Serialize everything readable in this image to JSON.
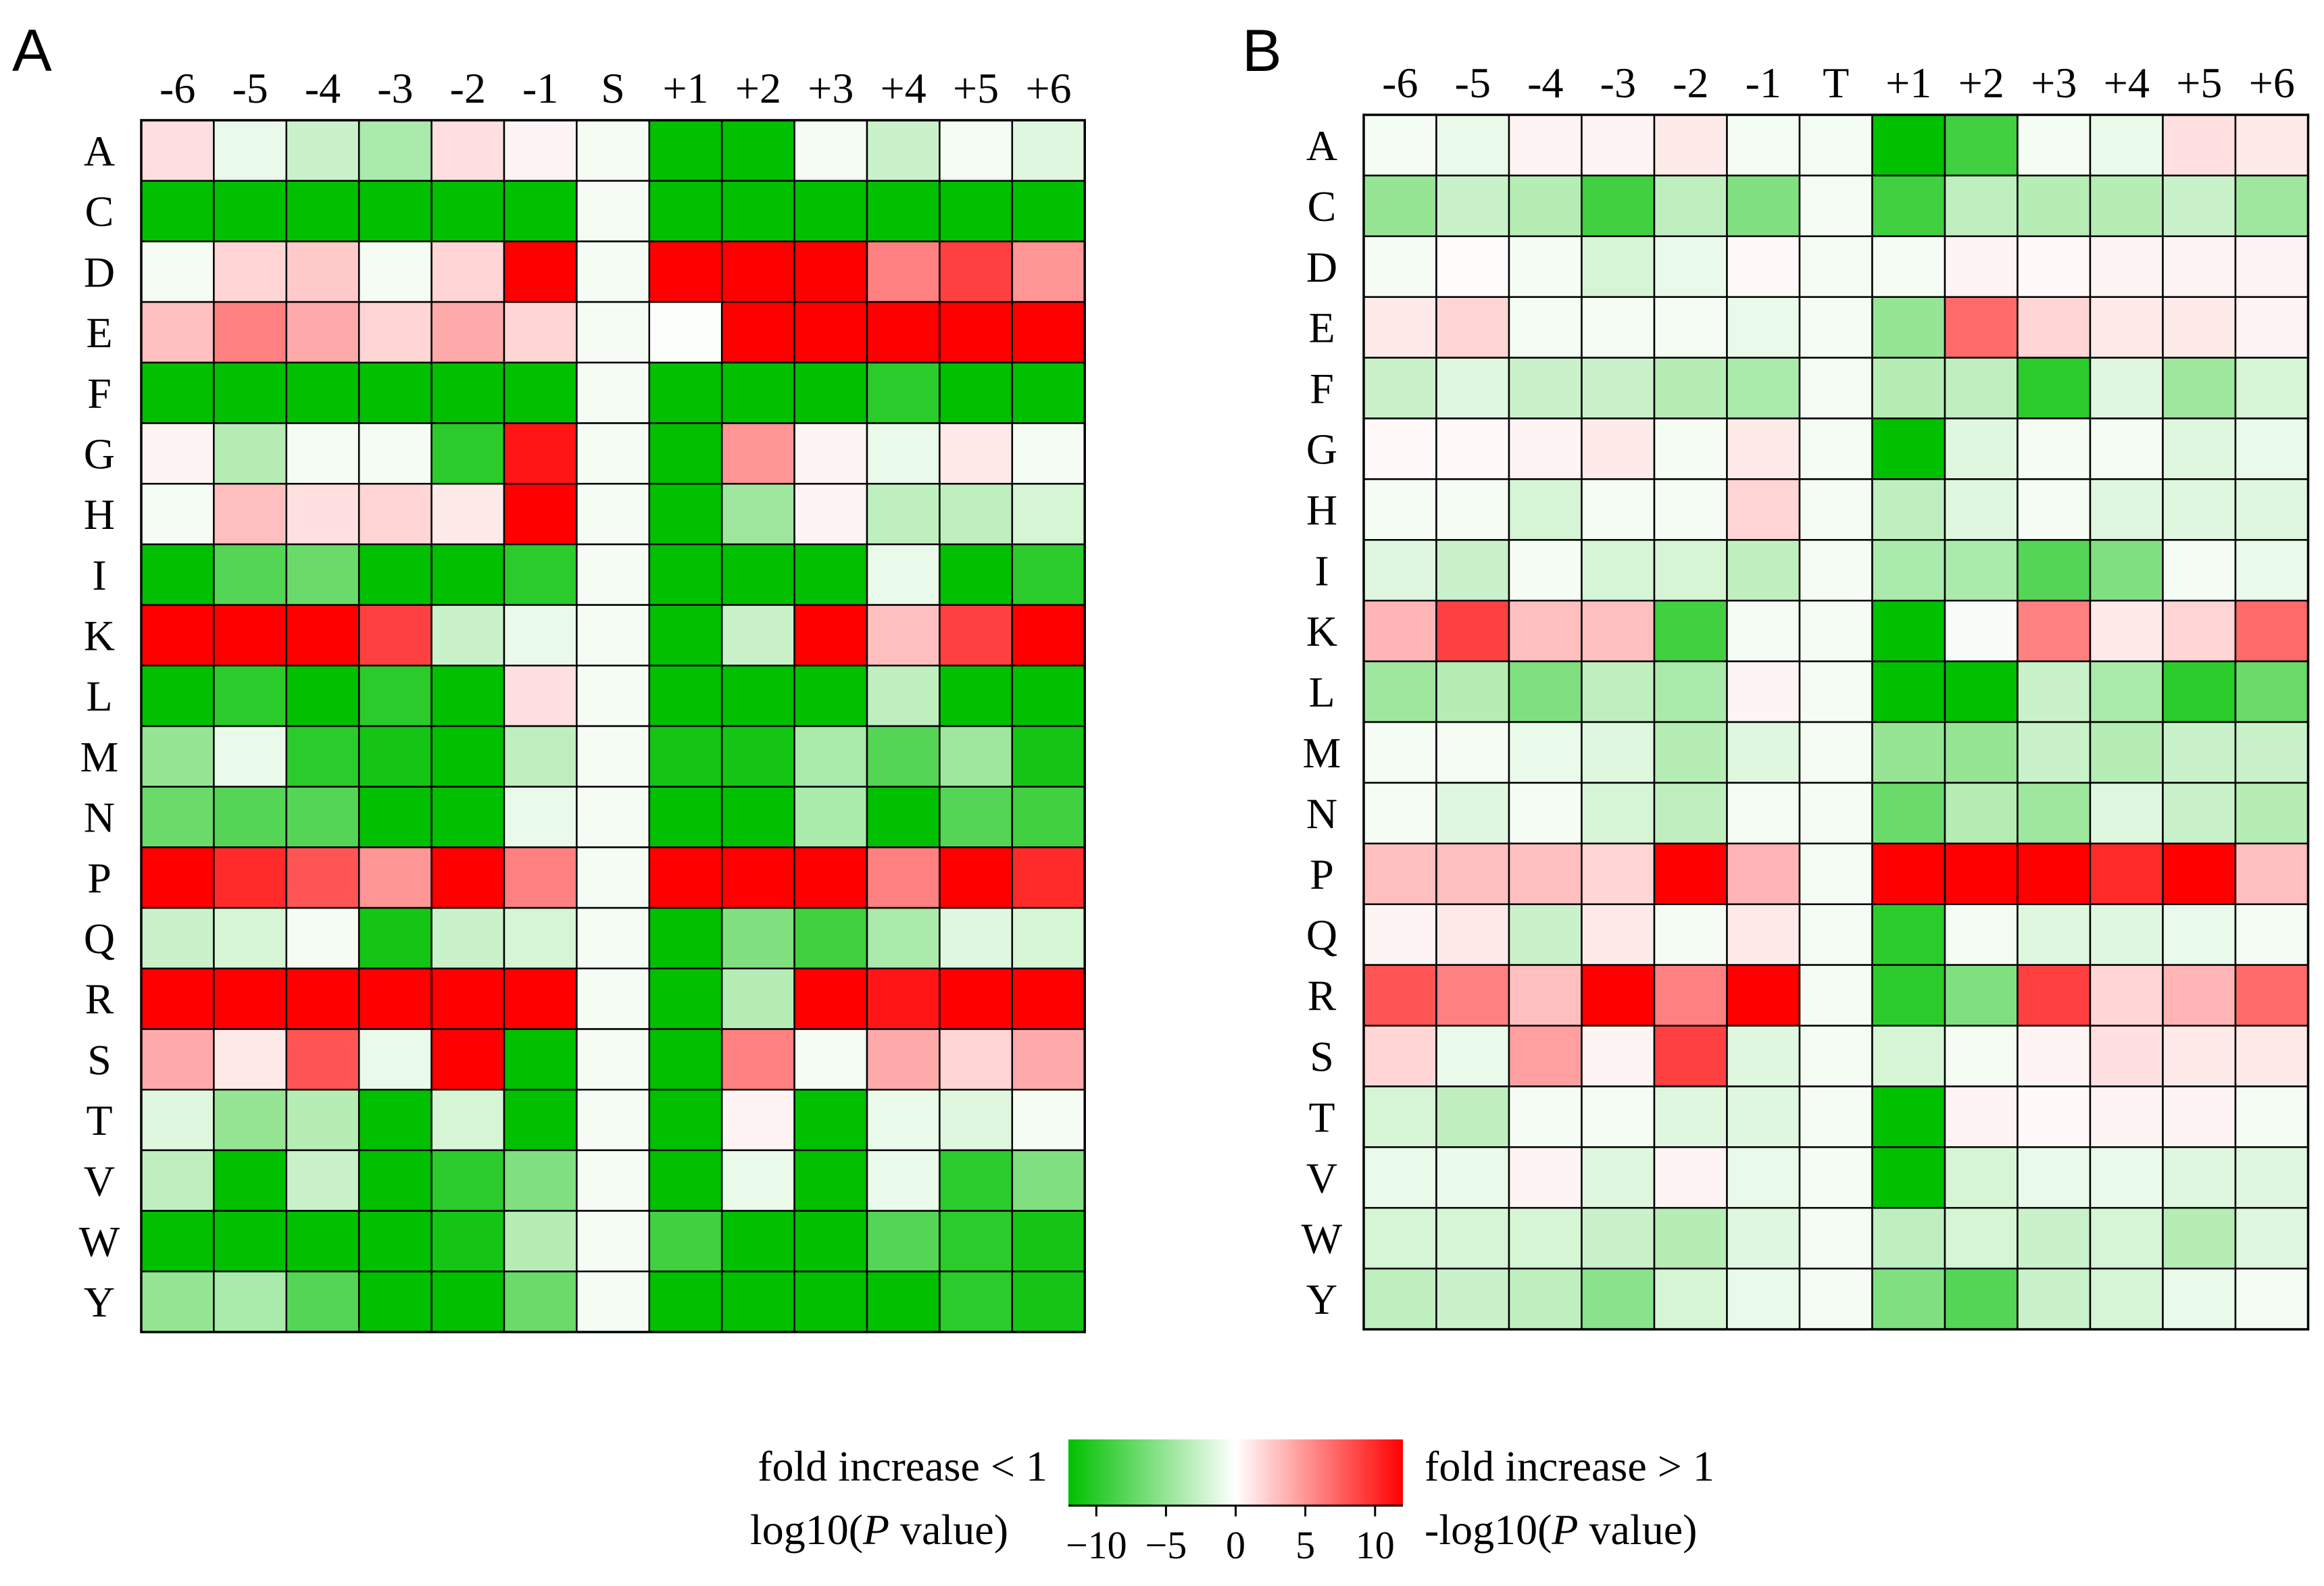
{
  "chart_data": [
    {
      "type": "heatmap",
      "panel_label": "A",
      "columns": [
        "-6",
        "-5",
        "-4",
        "-3",
        "-2",
        "-1",
        "S",
        "+1",
        "+2",
        "+3",
        "+4",
        "+5",
        "+6"
      ],
      "rows": [
        "A",
        "C",
        "D",
        "E",
        "F",
        "G",
        "H",
        "I",
        "K",
        "L",
        "M",
        "N",
        "P",
        "Q",
        "R",
        "S",
        "T",
        "V",
        "W",
        "Y"
      ],
      "values": [
        [
          1.5,
          -1,
          -2.5,
          -4,
          1.5,
          0.5,
          -0.5,
          -12,
          -12,
          -0.5,
          -2.5,
          -0.5,
          -1.5
        ],
        [
          -12,
          -12,
          -12,
          -12,
          -12,
          -12,
          -0.5,
          -12,
          -12,
          -12,
          -12,
          -12,
          -12
        ],
        [
          -0.5,
          2,
          2.5,
          -0.5,
          2,
          12,
          -0.5,
          12,
          12,
          12,
          6,
          9,
          5
        ],
        [
          3,
          6,
          4,
          2,
          4,
          2,
          -0.5,
          -0.2,
          12,
          12,
          12,
          12,
          12
        ],
        [
          -12,
          -12,
          -12,
          -12,
          -12,
          -12,
          -0.5,
          -12,
          -12,
          -12,
          -10,
          -12,
          -12
        ],
        [
          0.5,
          -3.5,
          -0.5,
          -0.5,
          -10,
          11,
          -0.5,
          -12,
          5,
          0.5,
          -1,
          1,
          -0.5
        ],
        [
          -0.5,
          3,
          1.5,
          2,
          1,
          12,
          -0.5,
          -12,
          -4.5,
          0.5,
          -3,
          -3,
          -2
        ],
        [
          -12,
          -8,
          -7,
          -12,
          -12,
          -10,
          -0.5,
          -12,
          -12,
          -12,
          -1,
          -12,
          -10
        ],
        [
          12,
          12,
          12,
          9,
          -2.5,
          -1,
          -0.5,
          -12,
          -2.5,
          12,
          3,
          9,
          12
        ],
        [
          -12,
          -10,
          -12,
          -10,
          -12,
          1.5,
          -0.5,
          -12,
          -12,
          -12,
          -3,
          -12,
          -12
        ],
        [
          -5,
          -1,
          -10,
          -11,
          -12,
          -3,
          -0.5,
          -11,
          -11,
          -4,
          -8,
          -4.5,
          -11
        ],
        [
          -7,
          -8,
          -8,
          -12,
          -12,
          -1,
          -0.5,
          -12,
          -12,
          -4,
          -12,
          -8,
          -9
        ],
        [
          12,
          10,
          8,
          5,
          12,
          6,
          -0.5,
          12,
          12,
          12,
          6,
          12,
          10
        ],
        [
          -2.5,
          -2,
          -0.5,
          -11,
          -2.5,
          -2,
          -0.5,
          -12,
          -6,
          -9,
          -4,
          -1.5,
          -2
        ],
        [
          12,
          12,
          12,
          12,
          12,
          12,
          -0.5,
          -12,
          -3.5,
          12,
          11,
          12,
          12
        ],
        [
          4,
          1,
          8,
          -1,
          12,
          -12,
          -0.5,
          -12,
          6,
          -0.5,
          4,
          2,
          4
        ],
        [
          -1.5,
          -5,
          -3.5,
          -12,
          -2,
          -12,
          -0.5,
          -12,
          0.5,
          -12,
          -1,
          -1.5,
          -0.5
        ],
        [
          -3,
          -12,
          -2.5,
          -12,
          -10,
          -6,
          -0.5,
          -12,
          -1,
          -12,
          -1,
          -10,
          -6
        ],
        [
          -12,
          -12,
          -12,
          -12,
          -11,
          -3.5,
          -0.5,
          -9,
          -12,
          -12,
          -8,
          -10,
          -11
        ],
        [
          -5,
          -4,
          -8,
          -12,
          -12,
          -7,
          -0.5,
          -12,
          -12,
          -12,
          -12,
          -10,
          -11
        ]
      ]
    },
    {
      "type": "heatmap",
      "panel_label": "B",
      "columns": [
        "-6",
        "-5",
        "-4",
        "-3",
        "-2",
        "-1",
        "T",
        "+1",
        "+2",
        "+3",
        "+4",
        "+5",
        "+6"
      ],
      "rows": [
        "A",
        "C",
        "D",
        "E",
        "F",
        "G",
        "H",
        "I",
        "K",
        "L",
        "M",
        "N",
        "P",
        "Q",
        "R",
        "S",
        "T",
        "V",
        "W",
        "Y"
      ],
      "values": [
        [
          -0.5,
          -1,
          0.5,
          0.5,
          1,
          -0.5,
          -0.5,
          -12,
          -9,
          -0.5,
          -1,
          1.5,
          1
        ],
        [
          -5,
          -2.5,
          -3.5,
          -9,
          -3,
          -6,
          -0.5,
          -9,
          -3,
          -3.5,
          -3.5,
          -2.5,
          -4.5
        ],
        [
          -0.5,
          0.2,
          -0.5,
          -2,
          -1,
          0.3,
          -0.5,
          -0.5,
          0.5,
          0.3,
          0.5,
          0.5,
          0.5
        ],
        [
          1,
          2,
          -0.5,
          -0.5,
          -0.5,
          -1,
          -0.5,
          -5,
          7,
          2,
          1,
          1,
          0.5
        ],
        [
          -2.5,
          -1.5,
          -2.5,
          -2.5,
          -3.5,
          -4,
          -0.5,
          -3.5,
          -3,
          -10,
          -1.5,
          -4.5,
          -2
        ],
        [
          0.3,
          0.3,
          0.5,
          1,
          -0.5,
          1,
          -0.5,
          -12,
          -1.5,
          -0.5,
          -0.5,
          -1.5,
          -1
        ],
        [
          -0.5,
          -0.5,
          -2,
          -0.5,
          -0.5,
          2,
          -0.5,
          -3,
          -1.5,
          -0.5,
          -1.5,
          -1.5,
          -1.5
        ],
        [
          -1.5,
          -2.5,
          -0.5,
          -2,
          -2,
          -3,
          -0.5,
          -4,
          -4,
          -8,
          -6,
          -0.5,
          -1
        ],
        [
          3.5,
          9,
          3,
          3,
          -9,
          -0.5,
          -0.5,
          -12,
          -0.3,
          6,
          1,
          2,
          7
        ],
        [
          -4.5,
          -3.5,
          -6,
          -3,
          -4,
          0.5,
          -0.5,
          -12,
          -12,
          -2.5,
          -4,
          -10,
          -7
        ],
        [
          -0.5,
          -0.5,
          -1,
          -1.5,
          -3.5,
          -1.5,
          -0.5,
          -5,
          -5,
          -2.5,
          -3.5,
          -2.5,
          -2.5
        ],
        [
          -0.5,
          -1.5,
          -0.5,
          -2,
          -3,
          -0.5,
          -0.5,
          -7,
          -3.5,
          -4.5,
          -1.5,
          -2.5,
          -3.5
        ],
        [
          3,
          3,
          3,
          2,
          12,
          3.5,
          -0.5,
          12,
          12,
          12,
          10,
          12,
          3
        ],
        [
          0.5,
          1,
          -2.5,
          1,
          -0.5,
          1,
          -0.5,
          -10,
          -0.5,
          -1.5,
          -1.5,
          -1,
          -0.5
        ],
        [
          8,
          6,
          3,
          12,
          6,
          12,
          -0.5,
          -10,
          -6,
          9,
          2,
          3.5,
          7
        ],
        [
          2,
          -1,
          4.5,
          0.5,
          9,
          -1.5,
          -0.5,
          -2,
          -0.5,
          0.5,
          1.5,
          1,
          1
        ],
        [
          -2,
          -3,
          -0.5,
          -0.5,
          -1.5,
          -1.5,
          -0.5,
          -12,
          0.5,
          0.3,
          0.5,
          0.5,
          -0.5
        ],
        [
          -1,
          -1,
          0.5,
          -1.5,
          0.5,
          -1,
          -0.5,
          -12,
          -2,
          -1,
          -1,
          -1.5,
          -1.5
        ],
        [
          -2,
          -2,
          -2,
          -2.5,
          -3.5,
          -1.5,
          -0.5,
          -3,
          -2,
          -2.5,
          -2,
          -3.5,
          -1.5
        ],
        [
          -3,
          -2.5,
          -3,
          -5.5,
          -2,
          -1,
          -0.5,
          -6,
          -8,
          -2.5,
          -2,
          -1,
          -0.5
        ]
      ]
    }
  ],
  "colorbar": {
    "ticks": [
      "−10",
      "−5",
      "0",
      "5",
      "10"
    ],
    "tick_values": [
      -10,
      -5,
      0,
      5,
      10
    ],
    "range": [
      -12,
      12
    ],
    "colors": {
      "negative": "#00c000",
      "zero": "#ffffff",
      "positive": "#ff0000"
    },
    "left_label_line1": "fold increase < 1",
    "left_label_line2_prefix": "log10(",
    "left_label_line2_italic": "P",
    "left_label_line2_suffix": " value)",
    "right_label_line1": "fold increase > 1",
    "right_label_line2_prefix": "-log10(",
    "right_label_line2_italic": "P",
    "right_label_line2_suffix": " value)"
  }
}
